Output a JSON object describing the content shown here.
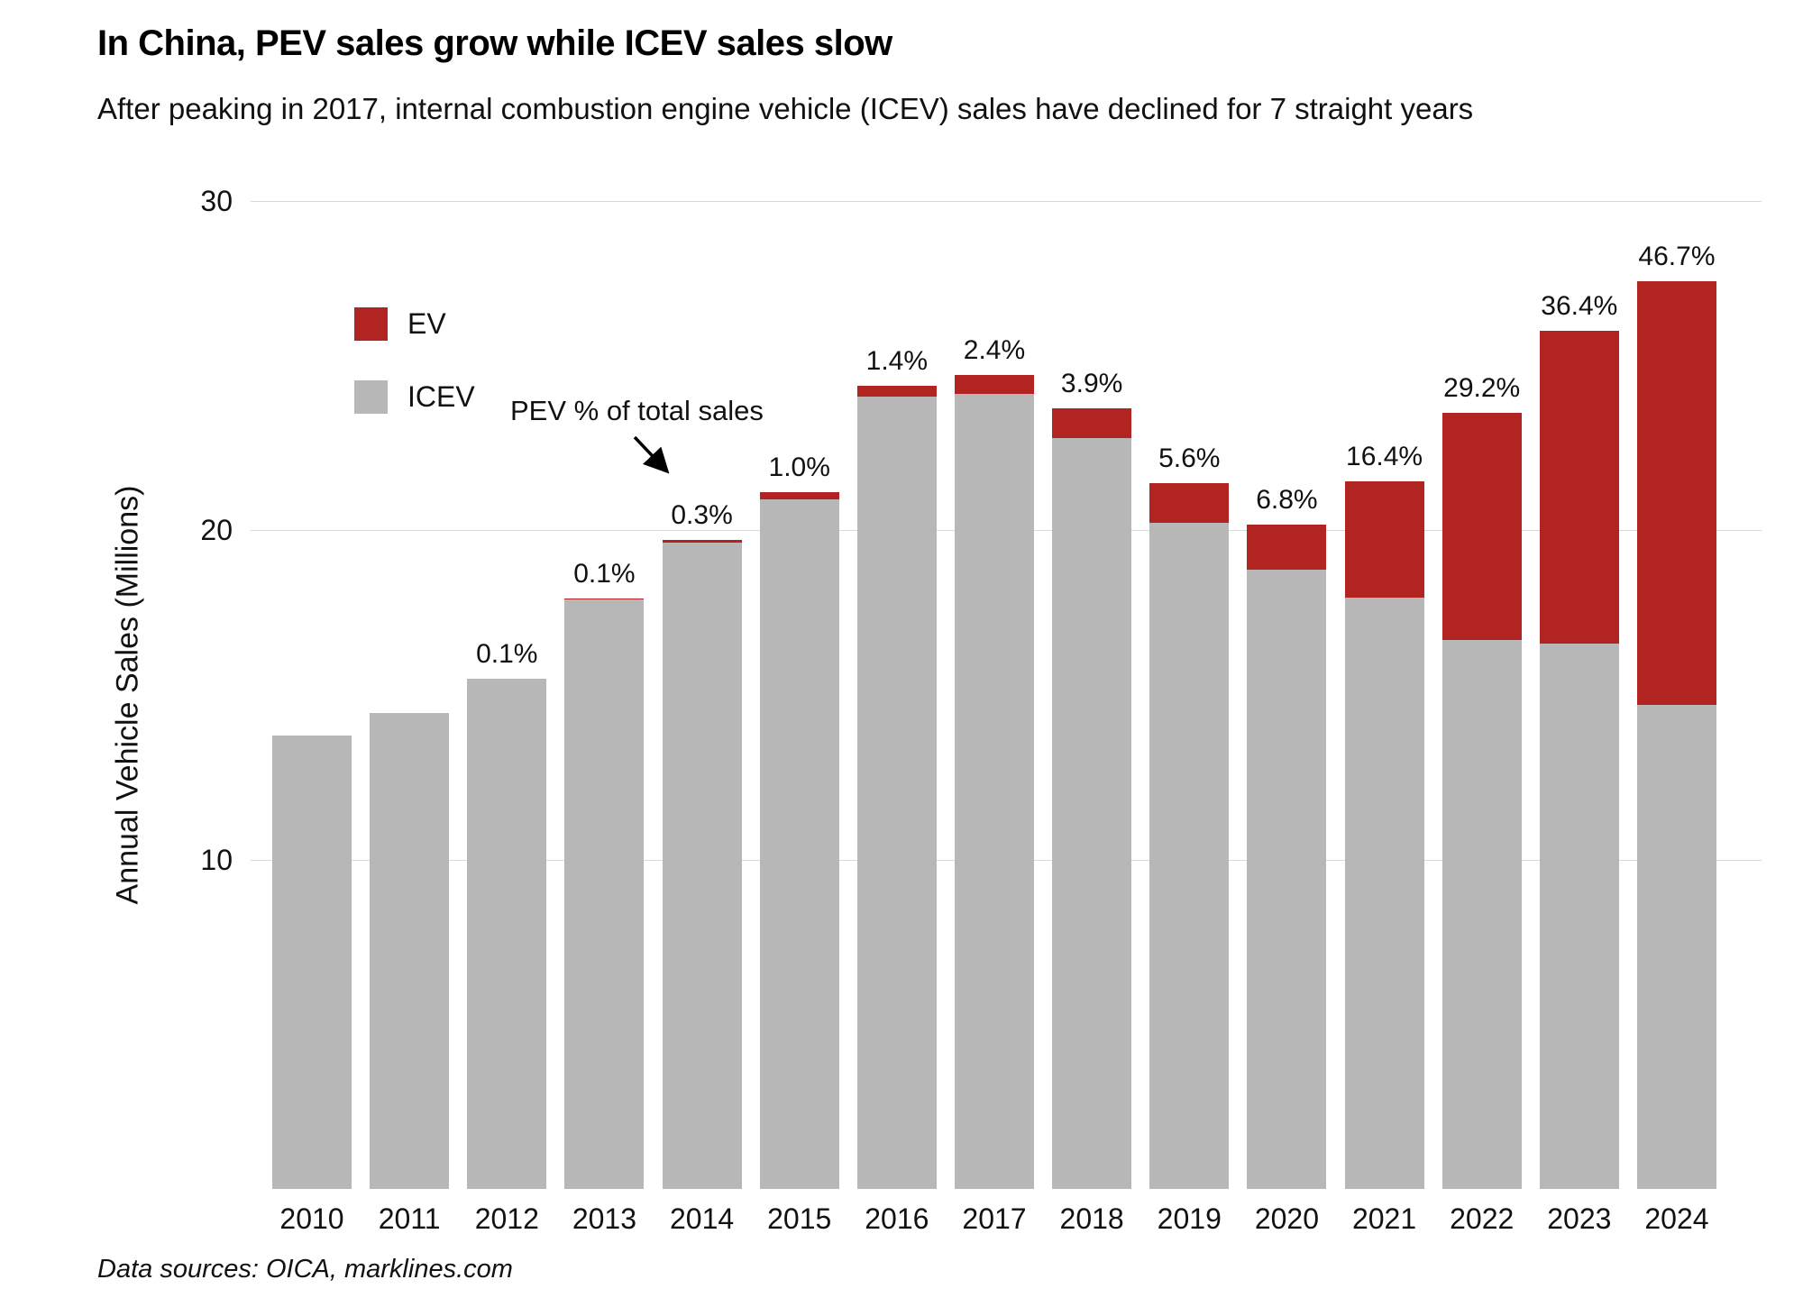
{
  "header": {
    "title": "In China, PEV sales grow while ICEV sales slow",
    "subtitle": "After peaking in 2017, internal combustion engine vehicle (ICEV) sales have declined for 7 straight years"
  },
  "footer": {
    "source": "Data sources: OICA, marklines.com"
  },
  "chart_data": {
    "type": "bar",
    "stacked": true,
    "title": "In China, PEV sales grow while ICEV sales slow",
    "xlabel": "",
    "ylabel": "Annual Vehicle Sales (Millions)",
    "ylim": [
      0,
      30
    ],
    "yticks": [
      10,
      20,
      30
    ],
    "grid": true,
    "legend_position": "top-left",
    "categories": [
      "2010",
      "2011",
      "2012",
      "2013",
      "2014",
      "2015",
      "2016",
      "2017",
      "2018",
      "2019",
      "2020",
      "2021",
      "2022",
      "2023",
      "2024"
    ],
    "series": [
      {
        "name": "EV",
        "color": "#b22422",
        "values": [
          0.0,
          0.01,
          0.02,
          0.02,
          0.06,
          0.21,
          0.34,
          0.59,
          0.92,
          1.2,
          1.37,
          3.52,
          6.88,
          9.49,
          12.87
        ]
      },
      {
        "name": "ICEV",
        "color": "#b7b7b7",
        "values": [
          13.76,
          14.44,
          15.48,
          17.91,
          19.64,
          20.94,
          24.06,
          24.13,
          22.79,
          20.24,
          18.81,
          17.96,
          16.68,
          16.57,
          14.69
        ]
      }
    ],
    "bar_labels": [
      "",
      "",
      "0.1%",
      "0.1%",
      "0.3%",
      "1.0%",
      "1.4%",
      "2.4%",
      "3.9%",
      "5.6%",
      "6.8%",
      "16.4%",
      "29.2%",
      "36.4%",
      "46.7%"
    ],
    "annotation": {
      "text": "PEV % of total sales",
      "points_to": "2014"
    }
  }
}
